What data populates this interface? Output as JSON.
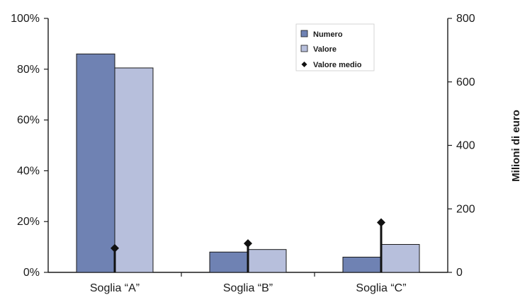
{
  "chart_data": {
    "type": "bar",
    "categories": [
      "Soglia “A”",
      "Soglia “B”",
      "Soglia “C”"
    ],
    "series": [
      {
        "name": "Numero",
        "axis": "left",
        "unit": "%",
        "values": [
          86,
          8,
          6
        ]
      },
      {
        "name": "Valore",
        "axis": "left",
        "unit": "%",
        "values": [
          80.5,
          9,
          11
        ]
      },
      {
        "name": "Valore medio",
        "axis": "right",
        "marker": "diamond",
        "values": [
          76,
          91,
          157
        ]
      }
    ],
    "y_left": {
      "ylim": [
        0,
        100
      ],
      "ticks": [
        "0%",
        "20%",
        "40%",
        "60%",
        "80%",
        "100%"
      ]
    },
    "y_right": {
      "label": "Milioni di euro",
      "ylim": [
        0,
        800
      ],
      "ticks": [
        "0",
        "200",
        "400",
        "600",
        "800"
      ]
    },
    "legend": {
      "placement": "top-right"
    },
    "grid": false,
    "colors": {
      "Numero": "#6f82b3",
      "Valore": "#b7bfdc",
      "Valore medio": "#111111",
      "axis": "#1a1a1a"
    }
  }
}
